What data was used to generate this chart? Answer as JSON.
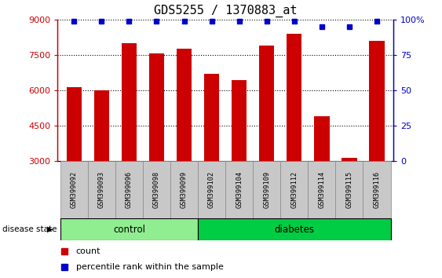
{
  "title": "GDS5255 / 1370883_at",
  "samples": [
    "GSM399092",
    "GSM399093",
    "GSM399096",
    "GSM399098",
    "GSM399099",
    "GSM399102",
    "GSM399104",
    "GSM399109",
    "GSM399112",
    "GSM399114",
    "GSM399115",
    "GSM399116"
  ],
  "counts": [
    6150,
    6000,
    8000,
    7550,
    7750,
    6700,
    6450,
    7900,
    8400,
    4900,
    3150,
    8100
  ],
  "percentiles": [
    99,
    99,
    99,
    99,
    99,
    99,
    99,
    99,
    99,
    95,
    95,
    99
  ],
  "n_control": 5,
  "n_diabetes": 7,
  "bar_color": "#CC0000",
  "percentile_color": "#0000CC",
  "control_fill": "#90EE90",
  "diabetes_fill": "#00CC44",
  "label_box_fill": "#C8C8C8",
  "ylim_left": [
    3000,
    9000
  ],
  "ylim_right": [
    0,
    100
  ],
  "yticks_left": [
    3000,
    4500,
    6000,
    7500,
    9000
  ],
  "yticks_right": [
    0,
    25,
    50,
    75,
    100
  ],
  "ytick_right_labels": [
    "0",
    "25",
    "50",
    "75",
    "100%"
  ],
  "legend_items": [
    "count",
    "percentile rank within the sample"
  ],
  "disease_state_label": "disease state",
  "control_label": "control",
  "diabetes_label": "diabetes"
}
